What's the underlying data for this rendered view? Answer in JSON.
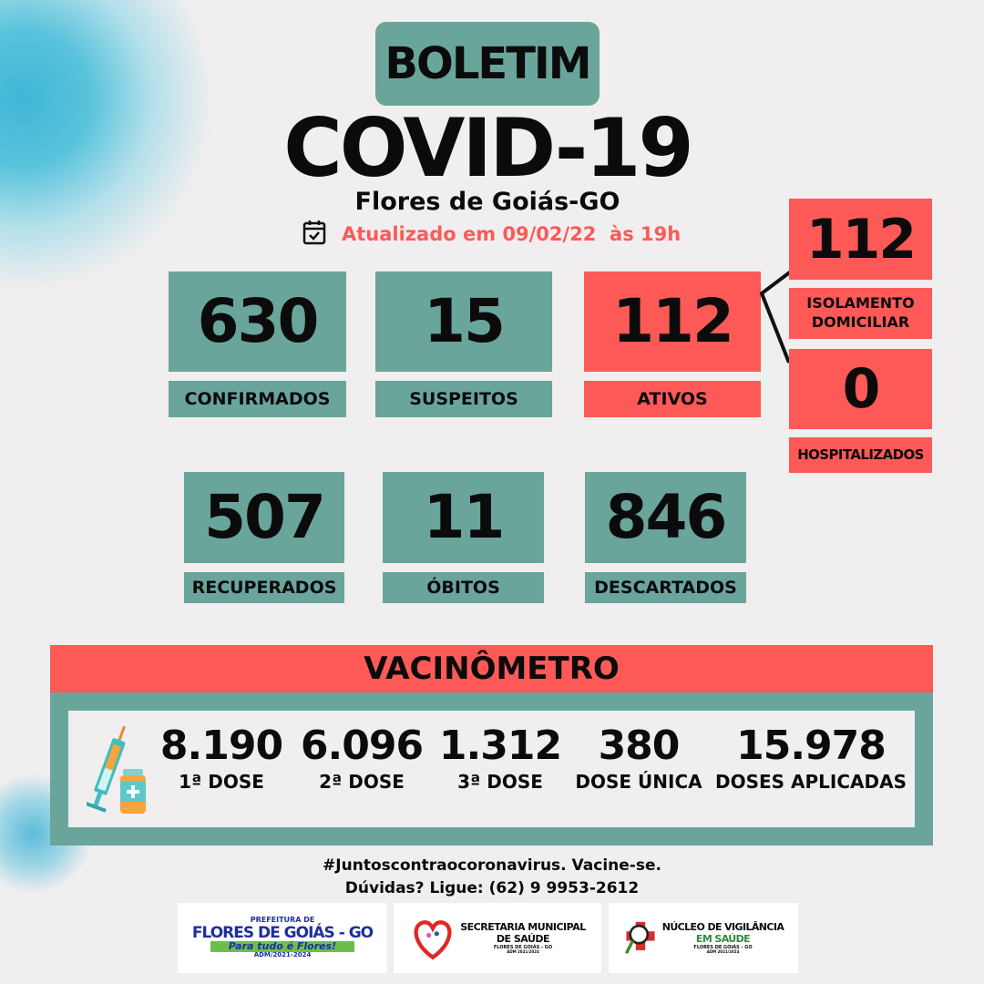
{
  "header": {
    "badge": "BOLETIM",
    "title": "COVID-19",
    "location": "Flores de Goiás-GO",
    "updated": "Atualizado em 09/02/22  às 19h",
    "calendar_icon": "calendar-check-icon"
  },
  "stats": [
    {
      "value": "630",
      "label": "CONFIRMADOS"
    },
    {
      "value": "15",
      "label": "SUSPEITOS"
    },
    {
      "value": "112",
      "label": "ATIVOS"
    },
    {
      "value": "507",
      "label": "RECUPERADOS"
    },
    {
      "value": "11",
      "label": "ÓBITOS"
    },
    {
      "value": "846",
      "label": "DESCARTADOS"
    }
  ],
  "active_breakdown": [
    {
      "value": "112",
      "label_line1": "ISOLAMENTO",
      "label_line2": "DOMICILIAR"
    },
    {
      "value": "0",
      "label_line1": "HOSPITALIZADOS"
    }
  ],
  "vaccine": {
    "title": "VACINÔMETRO",
    "icon": "syringe-vial-icon",
    "items": [
      {
        "value": "8.190",
        "label": "1ª DOSE"
      },
      {
        "value": "6.096",
        "label": "2ª DOSE"
      },
      {
        "value": "1.312",
        "label": "3ª DOSE"
      },
      {
        "value": "380",
        "label": "DOSE ÚNICA"
      },
      {
        "value": "15.978",
        "label": "DOSES APLICADAS"
      }
    ]
  },
  "footer": {
    "hashtag": "#Juntoscontraocoronavirus. Vacine-se.",
    "contact": "Dúvidas? Ligue: (62) 9 9953-2612"
  },
  "logos": [
    {
      "line1": "PREFEITURA DE",
      "line2": "FLORES DE GOIÁS - GO",
      "line3": "Para tudo é Flores!",
      "line4": "ADM/2021-2024"
    },
    {
      "line1": "SECRETARIA MUNICIPAL",
      "line2": "DE SAÚDE",
      "line3": "FLORES DE GOIÁS - GO",
      "line4": "ADM 2021/2024"
    },
    {
      "line1": "NÚCLEO DE VIGILÂNCIA",
      "line2": "EM SAÚDE",
      "line3": "FLORES DE GOIÁS - GO",
      "line4": "ADM 2021/2024"
    }
  ],
  "colors": {
    "teal": "#6aa59c",
    "red": "#fd5a57",
    "background": "#f0eeef",
    "accent_text": "#fd5a57"
  }
}
